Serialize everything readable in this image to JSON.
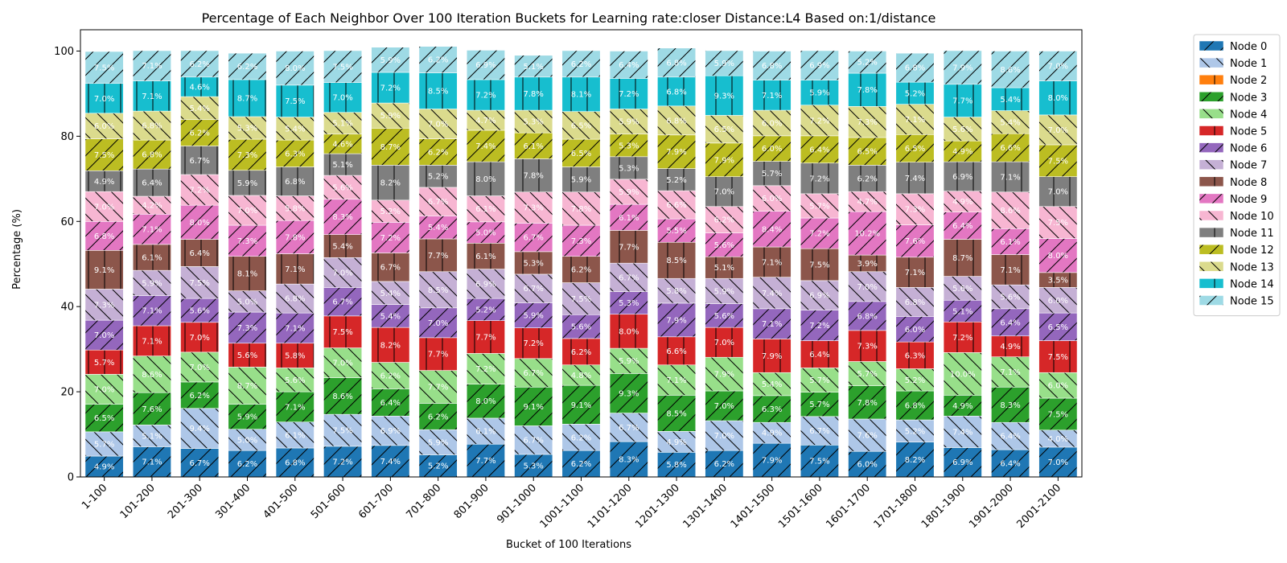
{
  "chart_data": {
    "type": "bar",
    "stacked": true,
    "title": "Percentage of Each Neighbor Over 100 Iteration Buckets for Learning rate:closer Distance:L4 Based on:1/distance",
    "xlabel": "Bucket of 100 Iterations",
    "ylabel": "Percentage (%)",
    "ylim": [
      0,
      105
    ],
    "yticks": [
      0,
      20,
      40,
      60,
      80,
      100
    ],
    "legend_position": "outside-right",
    "grid": false,
    "categories": [
      "1-100",
      "101-200",
      "201-300",
      "301-400",
      "401-500",
      "501-600",
      "601-700",
      "701-800",
      "801-900",
      "901-1000",
      "1001-1100",
      "1101-1200",
      "1201-1300",
      "1301-1400",
      "1401-1500",
      "1501-1600",
      "1601-1700",
      "1701-1800",
      "1801-1900",
      "1901-2000",
      "2001-2100"
    ],
    "series": [
      {
        "name": "Node 0",
        "color": "#1f77b4",
        "hatch": "/",
        "values": [
          4.9,
          7.1,
          6.7,
          6.2,
          6.8,
          7.2,
          7.4,
          5.2,
          7.7,
          5.3,
          6.2,
          8.3,
          5.8,
          6.2,
          7.9,
          7.5,
          6.0,
          8.2,
          6.9,
          6.4,
          7.0
        ]
      },
      {
        "name": "Node 1",
        "color": "#aec7e8",
        "hatch": "\\",
        "values": [
          5.7,
          5.1,
          9.4,
          5.0,
          6.1,
          7.5,
          6.9,
          5.9,
          6.1,
          6.7,
          6.2,
          6.7,
          4.9,
          7.0,
          4.9,
          6.7,
          7.6,
          5.2,
          7.4,
          6.4,
          4.0
        ]
      },
      {
        "name": "Node 2",
        "color": "#ff7f0e",
        "hatch": "|",
        "values": [
          0,
          0,
          0,
          0,
          0,
          0,
          0,
          0,
          0,
          0,
          0,
          0,
          0,
          0,
          0,
          0,
          0,
          0,
          0,
          0,
          0
        ]
      },
      {
        "name": "Node 3",
        "color": "#2ca02c",
        "hatch": "/",
        "values": [
          6.5,
          7.6,
          6.2,
          5.9,
          7.1,
          8.6,
          6.4,
          6.2,
          8.0,
          9.1,
          9.1,
          9.3,
          8.5,
          7.0,
          6.3,
          5.7,
          7.8,
          6.8,
          4.9,
          8.3,
          7.5
        ]
      },
      {
        "name": "Node 4",
        "color": "#98df8a",
        "hatch": "\\",
        "values": [
          7.0,
          8.6,
          7.0,
          8.7,
          5.6,
          7.0,
          6.2,
          7.7,
          7.2,
          6.7,
          4.8,
          5.9,
          7.1,
          7.9,
          5.4,
          5.7,
          5.7,
          5.2,
          10.0,
          7.1,
          6.0
        ]
      },
      {
        "name": "Node 5",
        "color": "#d62728",
        "hatch": "|",
        "values": [
          5.7,
          7.1,
          7.0,
          5.6,
          5.8,
          7.5,
          8.2,
          7.7,
          7.7,
          7.2,
          6.2,
          8.0,
          6.6,
          7.0,
          7.9,
          6.4,
          7.3,
          6.3,
          7.2,
          4.9,
          7.5
        ]
      },
      {
        "name": "Node 6",
        "color": "#9467bd",
        "hatch": "/",
        "values": [
          7.0,
          7.1,
          5.6,
          7.3,
          7.1,
          6.7,
          5.4,
          7.0,
          5.2,
          5.9,
          5.6,
          5.3,
          7.9,
          5.6,
          7.1,
          7.2,
          6.8,
          6.0,
          5.1,
          6.4,
          6.5
        ]
      },
      {
        "name": "Node 7",
        "color": "#c5b0d5",
        "hatch": "\\",
        "values": [
          7.3,
          5.9,
          7.5,
          5.0,
          6.8,
          7.0,
          5.4,
          8.5,
          6.9,
          6.7,
          7.5,
          6.7,
          5.8,
          5.9,
          7.4,
          6.9,
          7.0,
          6.8,
          5.6,
          5.6,
          6.0
        ]
      },
      {
        "name": "Node 8",
        "color": "#8c564b",
        "hatch": "|",
        "values": [
          9.1,
          6.1,
          6.4,
          8.1,
          7.1,
          5.4,
          6.7,
          7.7,
          6.1,
          5.3,
          6.2,
          7.7,
          8.5,
          5.1,
          7.1,
          7.5,
          3.9,
          7.1,
          8.7,
          7.1,
          3.5
        ]
      },
      {
        "name": "Node 9",
        "color": "#e377c2",
        "hatch": "/",
        "values": [
          6.8,
          7.1,
          8.0,
          7.3,
          7.8,
          8.3,
          7.2,
          5.4,
          5.0,
          6.7,
          7.3,
          6.1,
          5.5,
          5.6,
          8.4,
          7.2,
          10.2,
          7.6,
          6.4,
          6.1,
          8.0
        ]
      },
      {
        "name": "Node 10",
        "color": "#f7b6d2",
        "hatch": "\\",
        "values": [
          7.0,
          4.2,
          7.2,
          7.0,
          5.8,
          5.6,
          5.2,
          6.7,
          6.1,
          7.3,
          7.8,
          5.9,
          6.6,
          6.2,
          6.0,
          5.7,
          4.7,
          7.3,
          4.9,
          8.6,
          7.5
        ]
      },
      {
        "name": "Node 11",
        "color": "#7f7f7f",
        "hatch": "|",
        "values": [
          4.9,
          6.4,
          6.7,
          5.9,
          6.8,
          5.1,
          8.2,
          5.2,
          8.0,
          7.8,
          5.9,
          5.3,
          5.2,
          7.0,
          5.7,
          7.2,
          6.2,
          7.4,
          6.9,
          7.1,
          7.0
        ]
      },
      {
        "name": "Node 12",
        "color": "#bcbd22",
        "hatch": "/",
        "values": [
          7.5,
          6.8,
          6.2,
          7.3,
          6.3,
          4.6,
          8.7,
          6.2,
          7.4,
          6.1,
          6.5,
          5.3,
          7.9,
          7.9,
          6.0,
          6.4,
          6.5,
          6.5,
          4.9,
          6.6,
          7.5
        ]
      },
      {
        "name": "Node 13",
        "color": "#dbdb8d",
        "hatch": "\\",
        "values": [
          6.0,
          6.8,
          5.4,
          5.3,
          5.4,
          5.1,
          5.9,
          7.0,
          4.7,
          5.3,
          6.5,
          5.9,
          6.8,
          6.5,
          6.0,
          7.2,
          7.3,
          7.1,
          5.6,
          5.4,
          7.0
        ]
      },
      {
        "name": "Node 14",
        "color": "#17becf",
        "hatch": "|",
        "values": [
          7.0,
          7.1,
          4.6,
          8.7,
          7.5,
          7.0,
          7.2,
          8.5,
          7.2,
          7.8,
          8.1,
          7.2,
          6.8,
          9.3,
          7.1,
          5.9,
          7.8,
          5.2,
          7.7,
          5.4,
          8.0
        ]
      },
      {
        "name": "Node 15",
        "color": "#9edae5",
        "hatch": "/",
        "values": [
          7.5,
          7.1,
          6.2,
          6.2,
          8.0,
          7.5,
          5.9,
          6.2,
          6.9,
          5.1,
          6.2,
          6.4,
          6.8,
          5.9,
          6.8,
          6.9,
          5.2,
          6.8,
          7.9,
          8.6,
          7.0
        ]
      }
    ]
  }
}
